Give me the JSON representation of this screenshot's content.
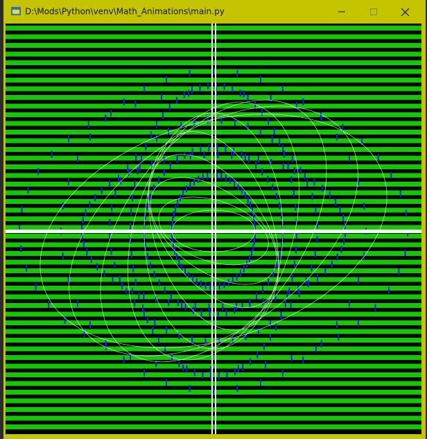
{
  "window": {
    "title": "D:\\Mods\\Python\\venv\\Math_Animations\\main.py"
  }
}
